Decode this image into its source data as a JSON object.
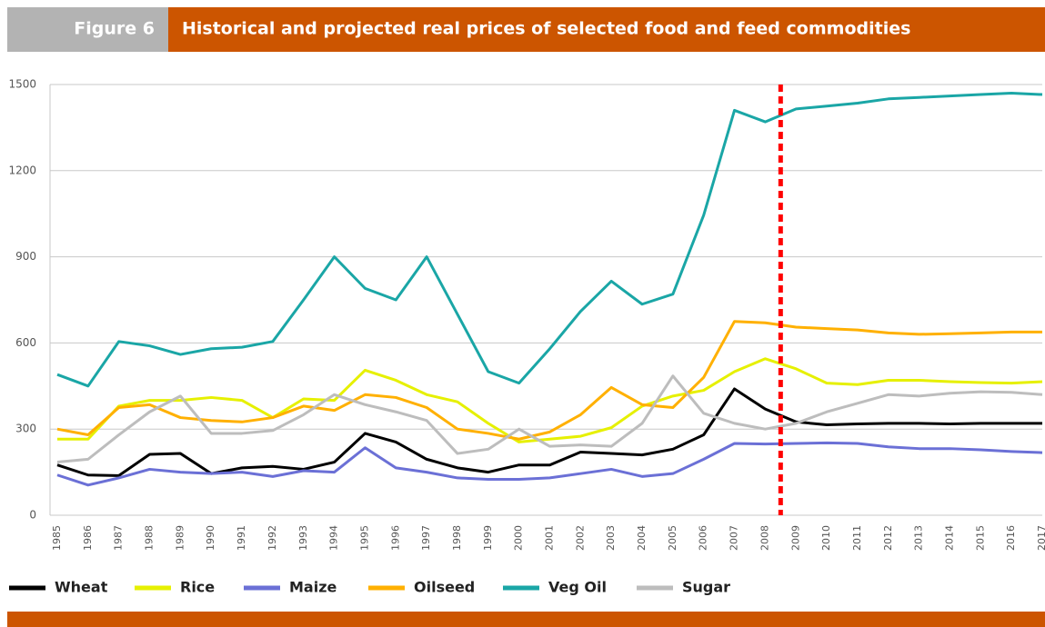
{
  "chart_data": {
    "type": "line",
    "figure_label": "Figure 6",
    "title": "Historical and projected real prices of selected food and feed commodities",
    "categories": [
      "1985",
      "1986",
      "1987",
      "1988",
      "1989",
      "1990",
      "1991",
      "1992",
      "1993",
      "1994",
      "1995",
      "1996",
      "1997",
      "1998",
      "1999",
      "2000",
      "2001",
      "2002",
      "2003",
      "2004",
      "2005",
      "2006",
      "2007",
      "2008",
      "2009",
      "2010",
      "2011",
      "2012",
      "2013",
      "2014",
      "2015",
      "2016",
      "2017"
    ],
    "ylim": [
      0,
      1500
    ],
    "yticks": [
      0,
      300,
      600,
      900,
      1200,
      1500
    ],
    "grid": true,
    "legend": "bottom",
    "series": [
      {
        "name": "Wheat",
        "color": "#000000",
        "values": [
          175,
          140,
          138,
          212,
          215,
          145,
          165,
          170,
          160,
          185,
          285,
          255,
          195,
          165,
          150,
          175,
          175,
          220,
          215,
          210,
          230,
          280,
          440,
          370,
          325,
          315,
          318,
          320,
          320,
          318,
          320,
          320,
          320
        ]
      },
      {
        "name": "Rice",
        "color": "#e6f000",
        "values": [
          265,
          265,
          380,
          400,
          400,
          410,
          400,
          340,
          405,
          400,
          505,
          470,
          420,
          395,
          320,
          255,
          265,
          275,
          305,
          380,
          415,
          435,
          500,
          545,
          510,
          460,
          455,
          470,
          470,
          465,
          462,
          460,
          465
        ]
      },
      {
        "name": "Maize",
        "color": "#6b70d6",
        "values": [
          140,
          105,
          130,
          160,
          150,
          145,
          150,
          135,
          155,
          150,
          235,
          165,
          150,
          130,
          125,
          125,
          130,
          145,
          160,
          135,
          145,
          195,
          250,
          248,
          250,
          252,
          250,
          238,
          232,
          232,
          228,
          222,
          218
        ]
      },
      {
        "name": "Oilseed",
        "color": "#ffb000",
        "values": [
          300,
          280,
          375,
          385,
          340,
          330,
          325,
          340,
          380,
          365,
          420,
          410,
          375,
          300,
          285,
          265,
          290,
          350,
          445,
          385,
          375,
          480,
          675,
          670,
          655,
          650,
          645,
          635,
          630,
          632,
          635,
          638,
          638
        ]
      },
      {
        "name": "Veg Oil",
        "color": "#1aa6a6",
        "values": [
          490,
          450,
          605,
          590,
          560,
          580,
          585,
          605,
          750,
          900,
          790,
          750,
          900,
          700,
          500,
          460,
          580,
          710,
          815,
          735,
          770,
          1045,
          1410,
          1370,
          1415,
          1425,
          1435,
          1450,
          1455,
          1460,
          1465,
          1470,
          1465
        ]
      },
      {
        "name": "Sugar",
        "color": "#bdbdbd",
        "values": [
          185,
          195,
          280,
          360,
          415,
          285,
          285,
          295,
          350,
          420,
          385,
          360,
          330,
          215,
          230,
          300,
          240,
          245,
          240,
          320,
          485,
          355,
          320,
          300,
          320,
          360,
          390,
          420,
          415,
          425,
          430,
          428,
          420
        ]
      }
    ]
  }
}
